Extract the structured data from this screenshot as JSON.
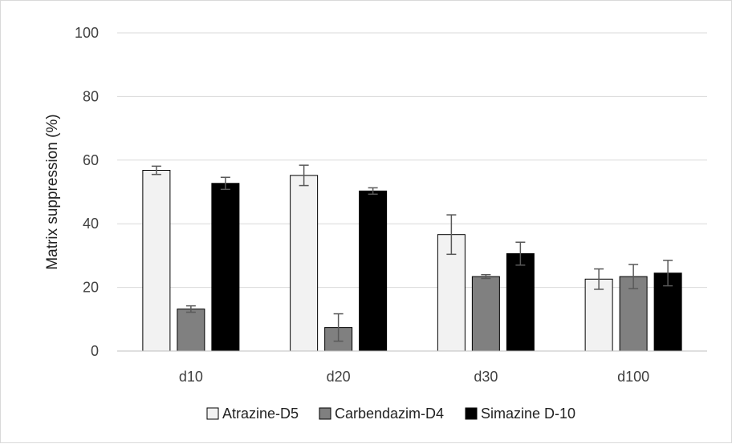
{
  "chart_data": {
    "type": "bar",
    "title": "",
    "xlabel": "",
    "ylabel": "Matrix suppression (%)",
    "ylim": [
      0,
      100
    ],
    "yticks": [
      0,
      20,
      40,
      60,
      80,
      100
    ],
    "categories": [
      "d10",
      "d20",
      "d30",
      "d100"
    ],
    "series": [
      {
        "name": "Atrazine-D5",
        "color": "#f2f2f2",
        "values": [
          56.8,
          55.2,
          36.6,
          22.6
        ],
        "errors": [
          1.3,
          3.2,
          6.2,
          3.2
        ]
      },
      {
        "name": "Carbendazim-D4",
        "color": "#808080",
        "values": [
          13.2,
          7.4,
          23.4,
          23.4
        ],
        "errors": [
          1.0,
          4.3,
          0.6,
          3.8
        ]
      },
      {
        "name": "Simazine D-10",
        "color": "#000000",
        "values": [
          52.7,
          50.3,
          30.6,
          24.5
        ],
        "errors": [
          1.9,
          1.0,
          3.6,
          4.0
        ]
      }
    ],
    "grid": true,
    "gridline_color": "#d9d9d9",
    "error_bar_color": "#595959",
    "legend_position": "bottom"
  }
}
